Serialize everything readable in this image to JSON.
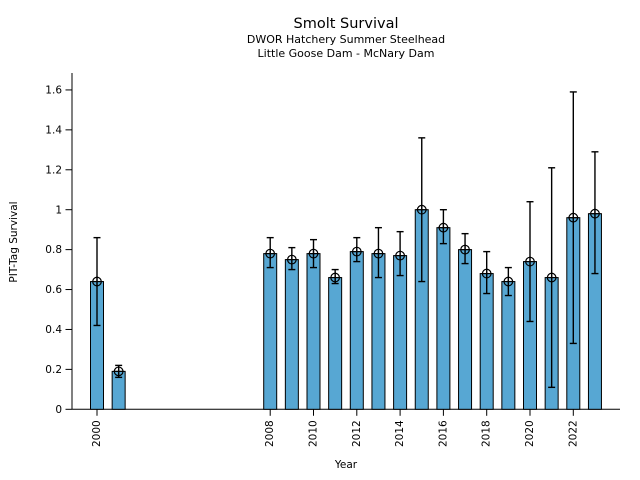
{
  "header": {
    "title": "Smolt Survival",
    "subtitle1": "DWOR Hatchery Summer Steelhead",
    "subtitle2": "Little Goose Dam - McNary Dam"
  },
  "chart_data": {
    "type": "bar",
    "title": "Smolt Survival",
    "subtitle1": "DWOR Hatchery Summer Steelhead",
    "subtitle2": "Little Goose Dam - McNary Dam",
    "xlabel": "Year",
    "ylabel": "PIT-Tag Survival",
    "x": [
      2000,
      2001,
      2008,
      2009,
      2010,
      2011,
      2012,
      2013,
      2014,
      2015,
      2016,
      2017,
      2018,
      2019,
      2020,
      2021,
      2022,
      2023
    ],
    "values": [
      0.64,
      0.19,
      0.78,
      0.75,
      0.78,
      0.66,
      0.79,
      0.78,
      0.77,
      1.0,
      0.91,
      0.8,
      0.68,
      0.64,
      0.74,
      0.66,
      0.96,
      0.98
    ],
    "ci_low": [
      0.42,
      0.16,
      0.71,
      0.7,
      0.71,
      0.63,
      0.74,
      0.66,
      0.67,
      0.64,
      0.83,
      0.73,
      0.58,
      0.57,
      0.44,
      0.11,
      0.33,
      0.68
    ],
    "ci_high": [
      0.86,
      0.22,
      0.86,
      0.81,
      0.85,
      0.7,
      0.86,
      0.91,
      0.89,
      1.36,
      1.0,
      0.88,
      0.79,
      0.71,
      1.04,
      1.21,
      1.59,
      1.29
    ],
    "yticks": [
      0,
      0.2,
      0.4,
      0.6,
      0.8,
      1,
      1.2,
      1.4,
      1.6
    ],
    "ytick_labels": [
      "0",
      "0.2",
      "0.4",
      "0.6",
      "0.8",
      "1",
      "1.2",
      "1.4",
      "1.6"
    ],
    "xticks": [
      2000,
      2008,
      2010,
      2012,
      2014,
      2016,
      2018,
      2020,
      2022
    ],
    "xlim": [
      1998.85,
      2024.2
    ],
    "ylim": [
      0,
      1.685
    ],
    "grid": false,
    "legend": "none",
    "error_bars": true,
    "marker": "circle-plus",
    "bar_color": "#57a7d3",
    "bar_edge_color": "#000000",
    "axis_color": "#000000"
  }
}
